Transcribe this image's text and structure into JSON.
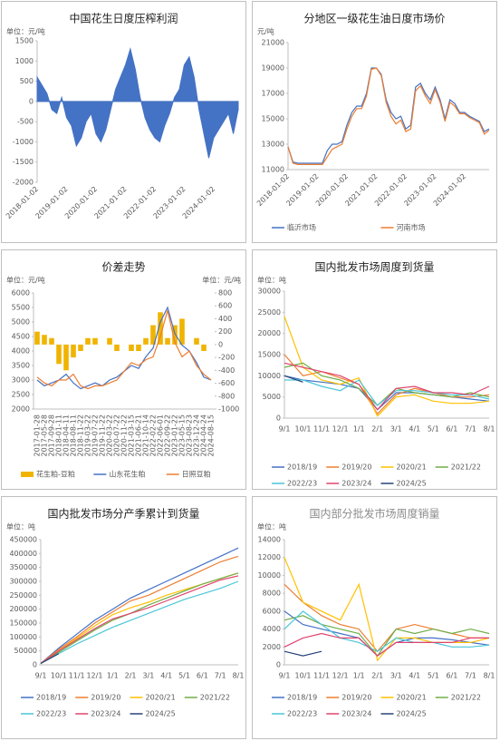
{
  "chart_data": [
    {
      "type": "area",
      "title": "中国花生日度压榨利润",
      "ylabel": "单位：元/吨",
      "color": "#4472c4",
      "categories": [
        "2018-01-02",
        null,
        null,
        null,
        null,
        null,
        "2019-01-02",
        null,
        null,
        null,
        null,
        null,
        "2020-01-02",
        null,
        null,
        null,
        null,
        null,
        "2021-01-02",
        null,
        null,
        null,
        null,
        null,
        "2022-01-02",
        null,
        null,
        null,
        null,
        null,
        "2023-01-02",
        null,
        null,
        null,
        null,
        null,
        "2024-01-02",
        null,
        null,
        null,
        null,
        null
      ],
      "values": [
        600,
        400,
        200,
        -200,
        -300,
        100,
        -400,
        -600,
        -1100,
        -900,
        -500,
        -300,
        -800,
        -1000,
        -700,
        -200,
        300,
        600,
        900,
        1300,
        800,
        100,
        -400,
        -700,
        -900,
        -1000,
        -600,
        -300,
        100,
        300,
        900,
        1100,
        600,
        -200,
        -800,
        -1400,
        -900,
        -700,
        -500,
        -300,
        -800,
        -200
      ],
      "ylim": [
        -2000,
        1500
      ],
      "yticks": [
        -2000,
        -1500,
        -1000,
        -500,
        0,
        500,
        1000,
        1500
      ]
    },
    {
      "type": "line",
      "title": "分地区一级花生油日度市场价",
      "ylabel": "元/吨",
      "categories": [
        "2018-01-02",
        null,
        null,
        null,
        null,
        null,
        "2019-01-02",
        null,
        null,
        null,
        null,
        null,
        "2020-01-02",
        null,
        null,
        null,
        null,
        null,
        "2021-01-02",
        null,
        null,
        null,
        null,
        null,
        "2022-01-02",
        null,
        null,
        null,
        null,
        null,
        "2023-01-02",
        null,
        null,
        null,
        null,
        null,
        "2024-01-02",
        null,
        null,
        null,
        null,
        null
      ],
      "series": [
        {
          "name": "临沂市场",
          "color": "#4472c4",
          "values": [
            12800,
            11600,
            11500,
            11500,
            11500,
            11500,
            11500,
            11500,
            12500,
            13000,
            13000,
            13200,
            14500,
            15500,
            16000,
            16000,
            17000,
            19000,
            19000,
            18500,
            16500,
            15500,
            15000,
            15200,
            14200,
            14500,
            17500,
            17800,
            17000,
            16500,
            17500,
            16500,
            15000,
            16500,
            16200,
            15500,
            15500,
            15200,
            15000,
            14800,
            14000,
            14200
          ]
        },
        {
          "name": "河南市场",
          "color": "#ed7d31",
          "values": [
            12800,
            11500,
            11400,
            11400,
            11400,
            11400,
            11400,
            11400,
            12000,
            12600,
            12800,
            13000,
            14200,
            15200,
            15800,
            15800,
            16800,
            18900,
            19000,
            18400,
            16300,
            15200,
            14600,
            14900,
            14000,
            14200,
            17200,
            17600,
            16800,
            16200,
            17300,
            16300,
            14800,
            16300,
            16000,
            15400,
            15400,
            15100,
            14900,
            14700,
            13800,
            14100
          ]
        }
      ],
      "ylim": [
        11000,
        21000
      ],
      "yticks": [
        11000,
        13000,
        15000,
        17000,
        19000,
        21000
      ]
    },
    {
      "type": "combo",
      "title": "价差走势",
      "ylabel": "单位：元/吨",
      "y2label": "单位：元/吨",
      "categories": [
        "2017-01-28",
        "2017-05-28",
        "2017-09-28",
        "2018-01-11",
        "2018-04-11",
        "2018-08-11",
        "2018-11-22",
        "2019-03-22",
        "2019-07-22",
        "2019-11-22",
        "2020-03-22",
        "2020-07-22",
        "2020-11-22",
        "2021-03-15",
        "2021-06-21",
        "2021-10-14",
        "2022-02-22",
        "2022-06-01",
        "2022-09-22",
        "2023-01-22",
        "2023-05-15",
        "2023-08-23",
        "2023-12-24",
        "2024-04-24",
        "2024-08-15"
      ],
      "series": [
        {
          "name": "花生粕-豆粕",
          "type": "bar",
          "axis": "y2",
          "color": "#f0b400",
          "values": [
            200,
            150,
            100,
            -300,
            -400,
            -200,
            -100,
            100,
            100,
            0,
            100,
            -100,
            0,
            -100,
            -100,
            100,
            300,
            500,
            100,
            300,
            400,
            0,
            100,
            -100,
            0
          ]
        },
        {
          "name": "山东花生粕",
          "type": "line",
          "color": "#4472c4",
          "values": [
            3000,
            2800,
            2900,
            3000,
            3200,
            2900,
            2700,
            2800,
            2900,
            2800,
            3000,
            3100,
            3300,
            3500,
            3400,
            3800,
            4100,
            5000,
            5500,
            4600,
            4200,
            4000,
            3600,
            3100,
            3000
          ]
        },
        {
          "name": "日照豆粕",
          "type": "line",
          "color": "#ed7d31",
          "values": [
            3100,
            2900,
            2800,
            3000,
            3000,
            3200,
            2800,
            2700,
            2800,
            2800,
            2900,
            3000,
            3300,
            3600,
            3500,
            3700,
            3800,
            4500,
            5400,
            4300,
            3800,
            4000,
            3500,
            3200,
            3000
          ]
        }
      ],
      "ylim": [
        2000,
        6000
      ],
      "yticks": [
        2000,
        2500,
        3000,
        3500,
        4000,
        4500,
        5000,
        5500,
        6000
      ],
      "y2lim": [
        -1000,
        800
      ],
      "y2ticks": [
        -1000,
        -800,
        -600,
        -400,
        -200,
        0,
        200,
        400,
        600,
        800
      ]
    },
    {
      "type": "line",
      "title": "国内批发市场周度到货量",
      "ylabel": "单位：吨",
      "categories": [
        "9/1",
        "10/1",
        "11/1",
        "12/1",
        "1/1",
        "2/1",
        "3/1",
        "4/1",
        "5/1",
        "6/1",
        "7/1",
        "8/1"
      ],
      "series": [
        {
          "name": "2018/19",
          "color": "#4472c4",
          "values": [
            10000,
            9000,
            8500,
            8000,
            7000,
            2000,
            6000,
            6000,
            5500,
            5000,
            4500,
            4000
          ]
        },
        {
          "name": "2019/20",
          "color": "#ed7d31",
          "values": [
            15000,
            10000,
            11000,
            9500,
            8000,
            1000,
            5500,
            7000,
            6000,
            5000,
            5000,
            5500
          ]
        },
        {
          "name": "2020/21",
          "color": "#ffc000",
          "values": [
            24000,
            12000,
            9000,
            8000,
            9500,
            500,
            5000,
            5500,
            4000,
            3500,
            3500,
            4000
          ]
        },
        {
          "name": "2021/22",
          "color": "#70ad47",
          "values": [
            12000,
            13000,
            10000,
            9000,
            7000,
            3000,
            7000,
            6000,
            5500,
            5000,
            6000,
            5000
          ]
        },
        {
          "name": "2022/23",
          "color": "#4bc6d8",
          "values": [
            9000,
            9000,
            7500,
            6500,
            9000,
            3000,
            6500,
            6500,
            6000,
            5500,
            5500,
            4500
          ]
        },
        {
          "name": "2023/24",
          "color": "#e0446f",
          "values": [
            13000,
            12000,
            11000,
            10000,
            8000,
            2000,
            7000,
            7500,
            6000,
            6000,
            5500,
            7500
          ]
        },
        {
          "name": "2024/25",
          "color": "#264478",
          "values": [
            10000,
            8500,
            null,
            null,
            null,
            null,
            null,
            null,
            null,
            null,
            null,
            null
          ]
        }
      ],
      "ylim": [
        0,
        30000
      ],
      "yticks": [
        0,
        5000,
        10000,
        15000,
        20000,
        25000,
        30000
      ]
    },
    {
      "type": "line",
      "title": "国内批发市场分产季累计到货量",
      "ylabel": "单位：吨",
      "categories": [
        "9/1",
        "10/1",
        "11/1",
        "12/1",
        "1/1",
        "2/1",
        "3/1",
        "4/1",
        "5/1",
        "6/1",
        "7/1",
        "8/1"
      ],
      "series": [
        {
          "name": "2018/19",
          "color": "#4472c4",
          "values": [
            5000,
            60000,
            110000,
            160000,
            200000,
            240000,
            270000,
            300000,
            330000,
            360000,
            390000,
            420000
          ]
        },
        {
          "name": "2019/20",
          "color": "#ed7d31",
          "values": [
            5000,
            55000,
            100000,
            150000,
            190000,
            230000,
            250000,
            280000,
            310000,
            340000,
            370000,
            390000
          ]
        },
        {
          "name": "2020/21",
          "color": "#ffc000",
          "values": [
            5000,
            50000,
            95000,
            140000,
            180000,
            205000,
            225000,
            250000,
            270000,
            290000,
            310000,
            330000
          ]
        },
        {
          "name": "2021/22",
          "color": "#70ad47",
          "values": [
            5000,
            45000,
            85000,
            125000,
            160000,
            185000,
            215000,
            240000,
            265000,
            290000,
            310000,
            330000
          ]
        },
        {
          "name": "2022/23",
          "color": "#4bc6d8",
          "values": [
            5000,
            40000,
            75000,
            105000,
            135000,
            160000,
            185000,
            210000,
            235000,
            255000,
            275000,
            300000
          ]
        },
        {
          "name": "2023/24",
          "color": "#e0446f",
          "values": [
            5000,
            50000,
            90000,
            130000,
            165000,
            185000,
            205000,
            230000,
            255000,
            280000,
            305000,
            320000
          ]
        },
        {
          "name": "2024/25",
          "color": "#264478",
          "values": [
            5000,
            40000,
            null,
            null,
            null,
            null,
            null,
            null,
            null,
            null,
            null,
            null
          ]
        }
      ],
      "ylim": [
        0,
        450000
      ],
      "yticks": [
        0,
        50000,
        100000,
        150000,
        200000,
        250000,
        300000,
        350000,
        400000,
        450000
      ]
    },
    {
      "type": "line",
      "title": "国内部分批发市场周度销量",
      "ylabel": "单位：吨",
      "categories": [
        "9/1",
        "10/1",
        "11/1",
        "12/1",
        "1/1",
        "2/1",
        "3/1",
        "4/1",
        "5/1",
        "6/1",
        "7/1",
        "8/1"
      ],
      "series": [
        {
          "name": "2018/19",
          "color": "#4472c4",
          "values": [
            6000,
            4500,
            4000,
            3500,
            3000,
            1000,
            2500,
            3000,
            3000,
            2800,
            2500,
            2200
          ]
        },
        {
          "name": "2019/20",
          "color": "#ed7d31",
          "values": [
            9000,
            7000,
            5500,
            4500,
            4000,
            1500,
            4000,
            4500,
            4000,
            3500,
            3000,
            3000
          ]
        },
        {
          "name": "2020/21",
          "color": "#ffc000",
          "values": [
            12000,
            7000,
            6000,
            5000,
            9000,
            500,
            3000,
            3000,
            2500,
            2500,
            2500,
            3000
          ]
        },
        {
          "name": "2021/22",
          "color": "#70ad47",
          "values": [
            5000,
            5500,
            4500,
            4000,
            3500,
            1000,
            4000,
            3500,
            4000,
            3500,
            4000,
            3500
          ]
        },
        {
          "name": "2022/23",
          "color": "#4bc6d8",
          "values": [
            4000,
            6000,
            4500,
            3000,
            2500,
            1500,
            3000,
            2500,
            2500,
            2000,
            2000,
            2200
          ]
        },
        {
          "name": "2023/24",
          "color": "#e0446f",
          "values": [
            2000,
            3000,
            3500,
            3000,
            3000,
            1000,
            2500,
            2500,
            2500,
            2500,
            3000,
            3000
          ]
        },
        {
          "name": "2024/25",
          "color": "#264478",
          "values": [
            1500,
            1000,
            1500,
            null,
            null,
            null,
            null,
            null,
            null,
            null,
            null,
            null
          ]
        }
      ],
      "ylim": [
        0,
        14000
      ],
      "yticks": [
        0,
        2000,
        4000,
        6000,
        8000,
        10000,
        12000,
        14000
      ]
    }
  ]
}
